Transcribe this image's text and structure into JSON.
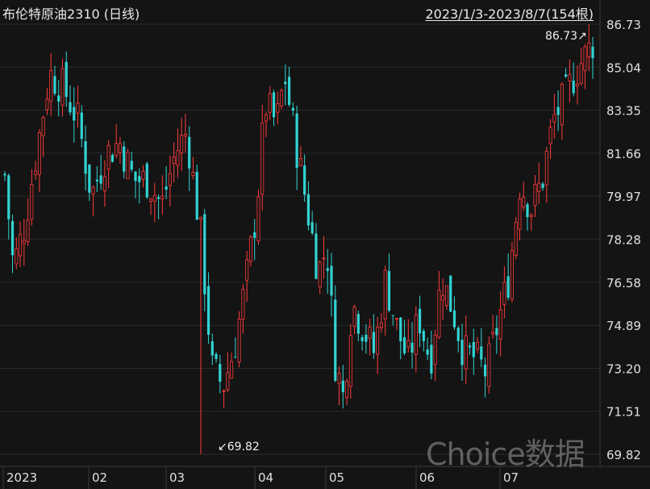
{
  "header": {
    "title": "布伦特原油2310 (日线)",
    "range": "2023/1/3-2023/8/7(154根)"
  },
  "watermark": "Choice数据",
  "colors": {
    "background": "#141414",
    "up": "#ff3b3b",
    "down": "#32d3d3",
    "grid": "#2a2a2a"
  },
  "chart_data": {
    "type": "candlestick",
    "y_ticks": [
      "86.73",
      "85.04",
      "83.35",
      "81.66",
      "79.97",
      "78.28",
      "76.58",
      "74.89",
      "73.20",
      "71.51",
      "69.82"
    ],
    "x_ticks": [
      "2023",
      "02",
      "03",
      "04",
      "05",
      "06",
      "07"
    ],
    "ylim": [
      69.82,
      86.73
    ],
    "annotations": {
      "high_label": "86.73↗",
      "low_label": "↙69.82"
    },
    "anchors": [
      [
        0,
        80.8
      ],
      [
        3,
        77.2
      ],
      [
        7,
        78.8
      ],
      [
        11,
        81.5
      ],
      [
        16,
        84.8
      ],
      [
        21,
        84.2
      ],
      [
        26,
        83.0
      ],
      [
        31,
        80.0
      ],
      [
        36,
        81.6
      ],
      [
        41,
        82.1
      ],
      [
        46,
        80.6
      ],
      [
        51,
        80.6
      ],
      [
        56,
        79.6
      ],
      [
        61,
        81.7
      ],
      [
        65,
        82.5
      ],
      [
        70,
        78.4
      ],
      [
        74,
        73.2
      ],
      [
        78,
        72.5
      ],
      [
        82,
        74.0
      ],
      [
        86,
        76.5
      ],
      [
        90,
        79.5
      ],
      [
        93,
        83.6
      ],
      [
        97,
        82.8
      ],
      [
        100,
        84.7
      ],
      [
        104,
        82.0
      ],
      [
        108,
        79.5
      ],
      [
        112,
        77.0
      ],
      [
        115,
        78.0
      ],
      [
        118,
        73.5
      ],
      [
        121,
        72.0
      ],
      [
        124,
        75.8
      ],
      [
        128,
        74.8
      ],
      [
        132,
        73.8
      ],
      [
        136,
        76.7
      ],
      [
        140,
        74.8
      ],
      [
        144,
        73.5
      ],
      [
        148,
        75.2
      ],
      [
        152,
        73.5
      ],
      [
        156,
        76.8
      ],
      [
        160,
        75.5
      ],
      [
        164,
        73.8
      ],
      [
        168,
        73.6
      ],
      [
        172,
        73.0
      ],
      [
        176,
        74.9
      ],
      [
        180,
        76.8
      ],
      [
        184,
        80.5
      ],
      [
        188,
        79.5
      ],
      [
        192,
        80.6
      ],
      [
        196,
        83.0
      ],
      [
        200,
        83.8
      ],
      [
        204,
        84.9
      ],
      [
        208,
        85.6
      ],
      [
        210,
        86.0
      ]
    ]
  }
}
